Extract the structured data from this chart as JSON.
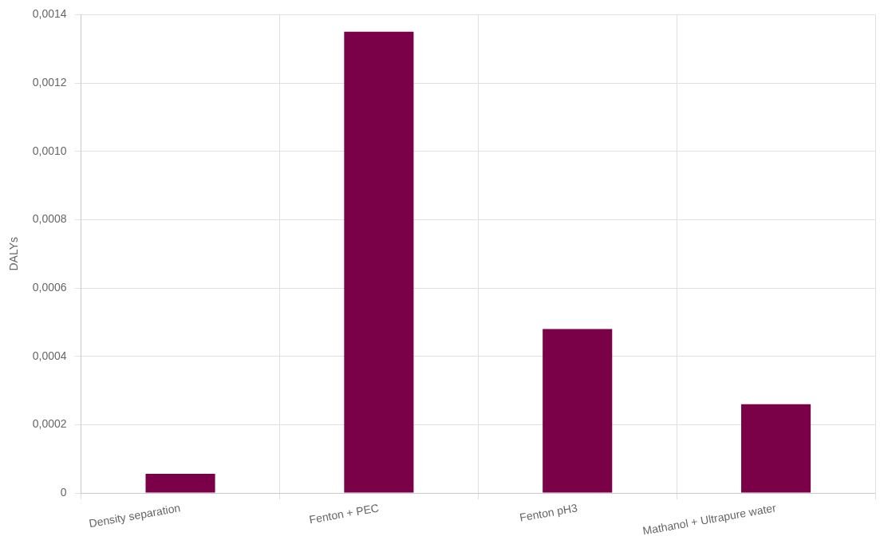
{
  "chart_data": {
    "type": "bar",
    "ylabel": "DALYs",
    "categories": [
      "Density separation",
      "Fenton + PEC",
      "Fenton pH3",
      "Mathanol + Ultrapure water"
    ],
    "values": [
      5.6e-05,
      0.00135,
      0.00048,
      0.00026
    ],
    "color": "#7a0048",
    "ylim": [
      0,
      0.0014
    ],
    "yticks": [
      0,
      {
        "value": 0.0002,
        "label": "0,0002"
      },
      {
        "value": 0.0004,
        "label": "0,0004"
      },
      {
        "value": 0.0006,
        "label": "0,0006"
      },
      {
        "value": 0.0008,
        "label": "0,0008"
      },
      {
        "value": 0.001,
        "label": "0,0010"
      },
      {
        "value": 0.0012,
        "label": "0,0012"
      },
      {
        "value": 0.0014,
        "label": "0,0014"
      }
    ],
    "grid": true,
    "legend": false
  }
}
